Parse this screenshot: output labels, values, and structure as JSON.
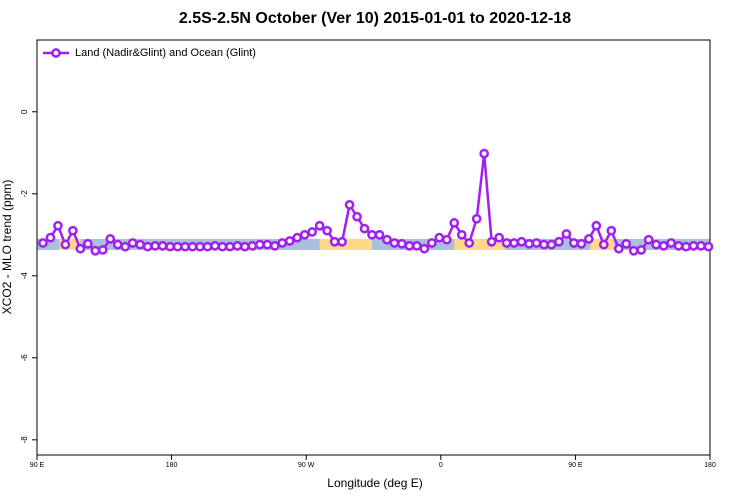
{
  "chart_data": {
    "type": "line",
    "title": "2.5S-2.5N October (Ver 10)   2015-01-01 to 2020-12-18",
    "x_label": "Longitude (deg E)",
    "y_label": "XCO2 - MLO trend (ppm)",
    "xlim": [
      90,
      540
    ],
    "xticks": [
      {
        "value": 90,
        "label": "90 E"
      },
      {
        "value": 180,
        "label": "180"
      },
      {
        "value": 270,
        "label": "90 W"
      },
      {
        "value": 360,
        "label": "0"
      },
      {
        "value": 450,
        "label": "90 E"
      },
      {
        "value": 540,
        "label": "180"
      }
    ],
    "ylim": [
      -8.37,
      1.75
    ],
    "yticks": [
      0,
      -2,
      -4,
      -6,
      -8
    ],
    "legend": "top-left",
    "band": {
      "y": [
        -3.37,
        -3.1
      ],
      "ocean_color": "#a9bfdc",
      "land_color": "#fdd98a",
      "land": [
        [
          105,
          119
        ],
        [
          279,
          314
        ],
        [
          369,
          403
        ],
        [
          460,
          476
        ]
      ]
    },
    "x": [
      94,
      99,
      104,
      109,
      114,
      119,
      124,
      129,
      134,
      139,
      144,
      149,
      154,
      159,
      164,
      169,
      174,
      179,
      184,
      189,
      194,
      199,
      204,
      209,
      214,
      219,
      224,
      229,
      234,
      239,
      244,
      249,
      254,
      259,
      264,
      269,
      274,
      279,
      284,
      289,
      294,
      299,
      304,
      309,
      314,
      319,
      324,
      329,
      334,
      339,
      344,
      349,
      354,
      359,
      364,
      369,
      374,
      379,
      384,
      389,
      394,
      399,
      404,
      409,
      414,
      419,
      424,
      429,
      434,
      439,
      444,
      449,
      454,
      459,
      464,
      469,
      474,
      479,
      484,
      489,
      494,
      499,
      504,
      509,
      514,
      519,
      524,
      529,
      534,
      539
    ],
    "series": [
      {
        "name": "Land (Nadir&Glint) and Ocean (Glint)",
        "color": "#a020f0",
        "values": [
          -3.2,
          -3.07,
          -2.78,
          -3.24,
          -2.9,
          -3.34,
          -3.22,
          -3.39,
          -3.37,
          -3.1,
          -3.24,
          -3.29,
          -3.2,
          -3.24,
          -3.29,
          -3.27,
          -3.27,
          -3.29,
          -3.29,
          -3.29,
          -3.29,
          -3.29,
          -3.29,
          -3.27,
          -3.29,
          -3.29,
          -3.27,
          -3.29,
          -3.27,
          -3.24,
          -3.24,
          -3.27,
          -3.2,
          -3.15,
          -3.07,
          -3.0,
          -2.93,
          -2.78,
          -2.9,
          -3.17,
          -3.17,
          -2.27,
          -2.56,
          -2.85,
          -3.0,
          -3.0,
          -3.12,
          -3.2,
          -3.22,
          -3.27,
          -3.27,
          -3.34,
          -3.2,
          -3.07,
          -3.12,
          -2.71,
          -3.0,
          -3.2,
          -2.61,
          -1.02,
          -3.17,
          -3.07,
          -3.2,
          -3.2,
          -3.17,
          -3.22,
          -3.2,
          -3.24,
          -3.24,
          -3.17,
          -2.98,
          -3.2,
          -3.22,
          -3.1,
          -2.78,
          -3.24,
          -2.9,
          -3.34,
          -3.22,
          -3.39,
          -3.37,
          -3.12,
          -3.24,
          -3.27,
          -3.2,
          -3.27,
          -3.29,
          -3.27,
          -3.27,
          -3.29
        ]
      }
    ]
  }
}
